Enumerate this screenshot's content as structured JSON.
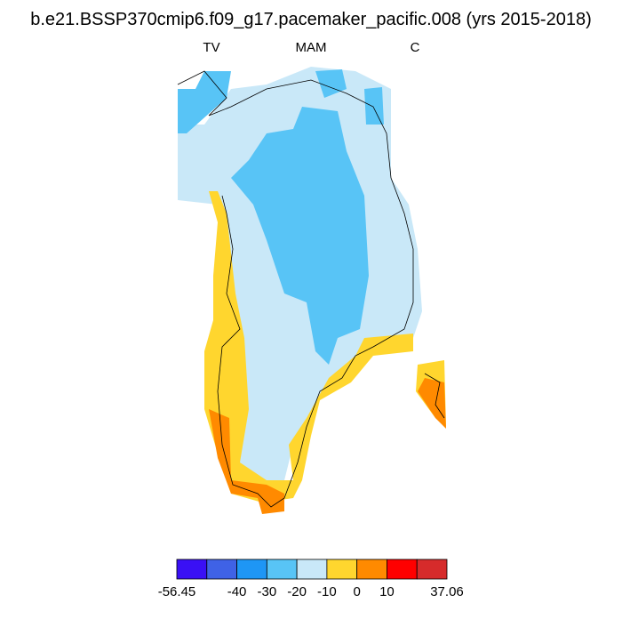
{
  "title": "b.e21.BSSP370cmip6.f09_g17.pacemaker_pacific.008 (yrs 2015-2018)",
  "panel_labels": {
    "left": "TV",
    "center": "MAM",
    "right": "C"
  },
  "colorbar": {
    "colors": [
      "#3a10f5",
      "#3f62e6",
      "#1e96f5",
      "#58c4f6",
      "#c9e8f8",
      "#ffd62e",
      "#ff8a00",
      "#ff0000",
      "#d62b2b"
    ],
    "labels": [
      "-56.45",
      "-40",
      "-30",
      "-20",
      "-10",
      "0",
      "10",
      "37.06"
    ]
  }
}
